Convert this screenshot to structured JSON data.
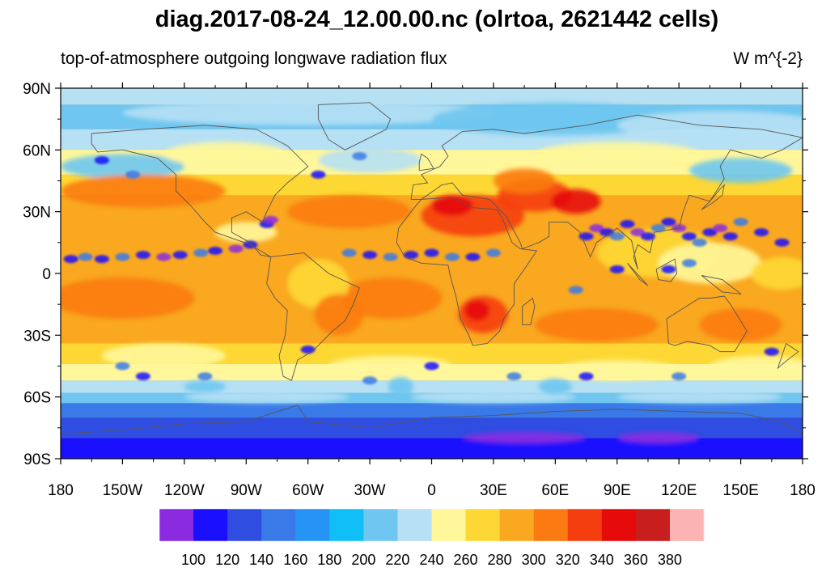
{
  "title": "diag.2017-08-24_12.00.00.nc (olrtoa, 2621442 cells)",
  "subtitle_left": "top-of-atmosphere outgoing longwave radiation flux",
  "subtitle_right": "W m^{-2}",
  "lat_labels": [
    "90N",
    "60N",
    "30N",
    "0",
    "30S",
    "60S",
    "90S"
  ],
  "lon_labels": [
    "180",
    "150W",
    "120W",
    "90W",
    "60W",
    "30W",
    "0",
    "30E",
    "60E",
    "90E",
    "120E",
    "150E",
    "180"
  ],
  "colorbar": {
    "colors": [
      "#8a2be2",
      "#1a10ff",
      "#2f4de0",
      "#3a7ae8",
      "#2594f5",
      "#10bff6",
      "#6fc6f0",
      "#b6e0f4",
      "#fff79a",
      "#fdd835",
      "#f9a820",
      "#fb7b12",
      "#f53e10",
      "#e60a0a",
      "#c81e1e",
      "#fcb3b3"
    ],
    "labels": [
      "100",
      "120",
      "140",
      "160",
      "180",
      "200",
      "220",
      "240",
      "260",
      "280",
      "300",
      "320",
      "340",
      "360",
      "380"
    ]
  },
  "map_colors": {
    "polar_south": "#1a10ff",
    "polar_south_edge": "#2f4de0",
    "cold_band": "#3a7ae8",
    "cool_band": "#6fc6f0",
    "light_band": "#b6e0f4",
    "mid_lat": "#fff79a",
    "subtropic": "#fdd835",
    "tropic_ocean": "#f9a820",
    "warm": "#fb7b12",
    "hot": "#f53e10",
    "hottest": "#e60a0a",
    "convective": "#1a10ff",
    "convective_core": "#8a2be2",
    "coastline": "#555555"
  }
}
